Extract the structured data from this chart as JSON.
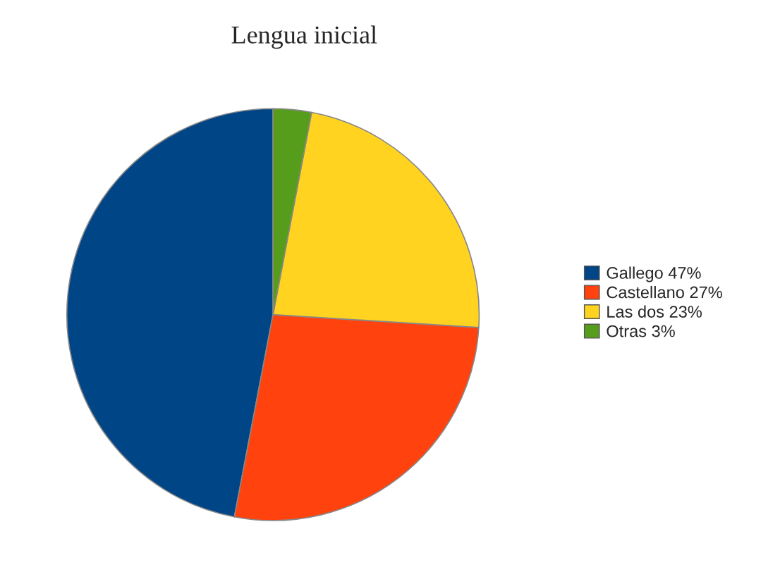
{
  "chart_data": {
    "type": "pie",
    "title": "Lengua inicial",
    "categories": [
      "Gallego 47%",
      "Castellano 27%",
      "Las dos 23%",
      "Otras 3%"
    ],
    "values": [
      47,
      27,
      23,
      3
    ],
    "colors": [
      "#004586",
      "#ff420e",
      "#ffd320",
      "#579d1c"
    ],
    "legend": "right"
  }
}
